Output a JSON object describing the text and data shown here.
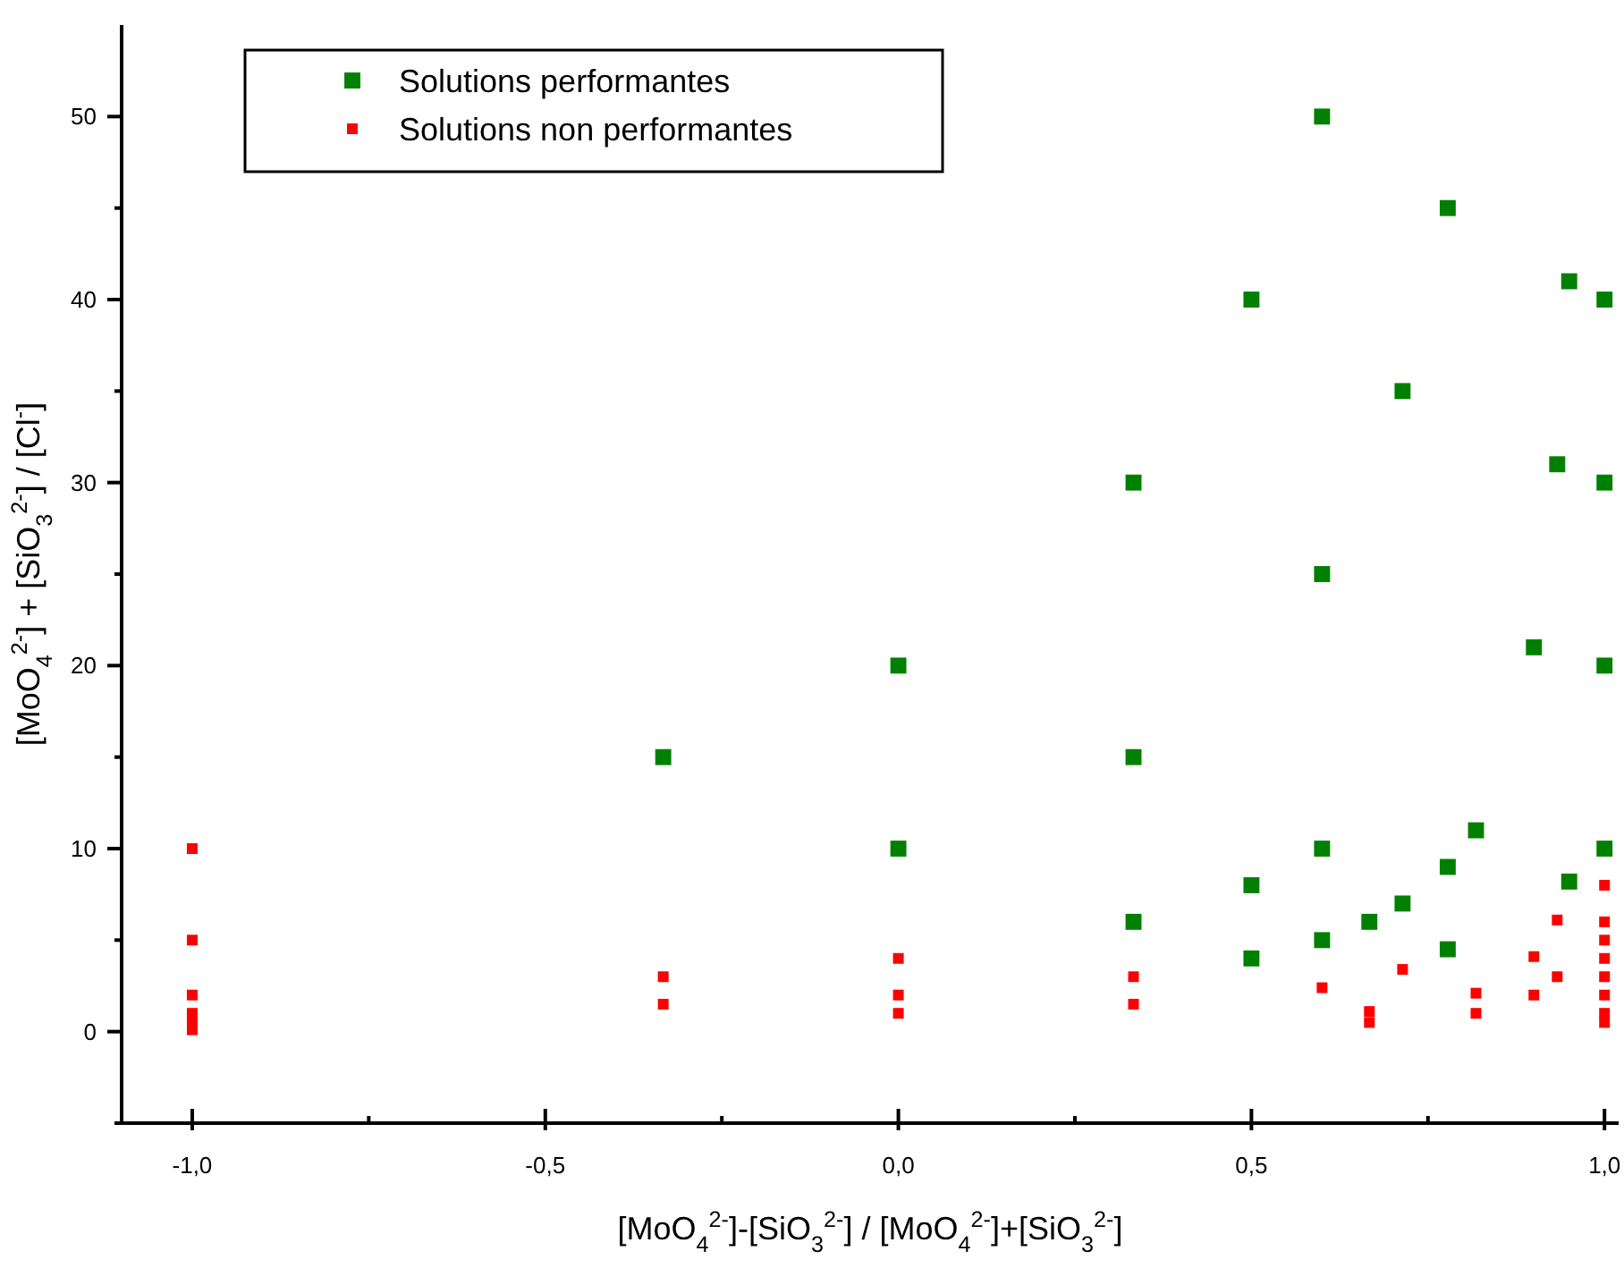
{
  "chart_data": {
    "type": "scatter",
    "xlabel": "[MoO$_{4}$$^{2-}$]-[SiO$_{3}$$^{2-}$] / [MoO$_{4}$$^{2-}$]+[SiO$_{3}$$^{2-}$]",
    "ylabel": "[MoO$_{4}$$^{2-}$] + [SiO$_{3}$$^{2-}$] / [Cl$^{-}$]",
    "xlim": [
      -1.1,
      1.02
    ],
    "ylim": [
      -5,
      55
    ],
    "xticks": [
      {
        "value": -1,
        "label": "-1,0"
      },
      {
        "value": -0.75,
        "label": null
      },
      {
        "value": -0.5,
        "label": "-0,5"
      },
      {
        "value": -0.25,
        "label": null
      },
      {
        "value": 0,
        "label": "0,0"
      },
      {
        "value": 0.25,
        "label": null
      },
      {
        "value": 0.5,
        "label": "0,5"
      },
      {
        "value": 0.75,
        "label": null
      },
      {
        "value": 1,
        "label": "1,0"
      }
    ],
    "yticks": [
      {
        "value": -5,
        "label": null
      },
      0,
      {
        "value": 5,
        "label": null
      },
      10,
      {
        "value": 15,
        "label": null
      },
      20,
      {
        "value": 25,
        "label": null
      },
      30,
      {
        "value": 35,
        "label": null
      },
      40,
      {
        "value": 45,
        "label": null
      },
      50
    ],
    "marker": "square",
    "legend": "top left",
    "grid": false,
    "series": [
      {
        "name": "Solutions performantes",
        "color": "#008000",
        "x": [
          -0.333,
          0,
          0,
          0.333,
          0.333,
          0.333,
          0.5,
          0.5,
          0.5,
          0.6,
          0.6,
          0.6,
          0.6,
          0.667,
          0.714,
          0.714,
          0.778,
          0.778,
          0.778,
          0.818,
          0.9,
          0.933,
          0.95,
          0.95,
          1,
          1,
          1,
          1
        ],
        "values": [
          15,
          20,
          10,
          30,
          15,
          6,
          40,
          8,
          4,
          50,
          25,
          10,
          5,
          6,
          35,
          7,
          45,
          9,
          4.5,
          11,
          21,
          31,
          41,
          8.2,
          40,
          30,
          20,
          10
        ]
      },
      {
        "name": "Solutions non performantes",
        "color": "#ff0000",
        "x": [
          -1,
          -1,
          -1,
          -1,
          -1,
          -1,
          -0.333,
          -0.333,
          0,
          0,
          0,
          0.333,
          0.333,
          0.6,
          0.667,
          0.667,
          0.714,
          0.818,
          0.818,
          0.9,
          0.9,
          0.933,
          0.933,
          1,
          1,
          1,
          1,
          1,
          1,
          1,
          1
        ],
        "values": [
          10,
          5,
          2,
          1,
          0.5,
          0.1,
          3,
          1.5,
          4,
          2,
          1,
          3,
          1.5,
          2.4,
          1.1,
          0.5,
          3.4,
          2.1,
          1,
          4.1,
          2,
          6.1,
          3,
          8,
          6,
          5,
          4,
          3,
          2,
          1,
          0.5
        ]
      }
    ]
  }
}
